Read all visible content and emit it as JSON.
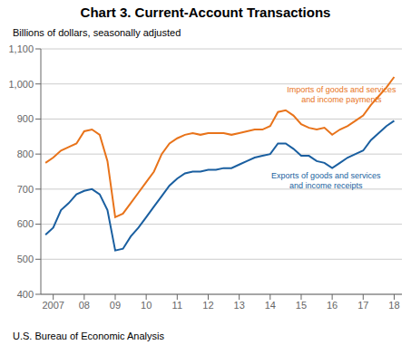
{
  "chart_data": {
    "type": "line",
    "title": "Chart 3. Current-Account Transactions",
    "y_label": "Billions of dollars, seasonally adjusted",
    "footer": "U.S. Bureau of Economic Analysis",
    "x": [
      2006.75,
      2007.0,
      2007.25,
      2007.5,
      2007.75,
      2008.0,
      2008.25,
      2008.5,
      2008.75,
      2009.0,
      2009.25,
      2009.5,
      2009.75,
      2010.0,
      2010.25,
      2010.5,
      2010.75,
      2011.0,
      2011.25,
      2011.5,
      2011.75,
      2012.0,
      2012.25,
      2012.5,
      2012.75,
      2013.0,
      2013.25,
      2013.5,
      2013.75,
      2014.0,
      2014.25,
      2014.5,
      2014.75,
      2015.0,
      2015.25,
      2015.5,
      2015.75,
      2016.0,
      2016.25,
      2016.5,
      2016.75,
      2017.0,
      2017.25,
      2017.5,
      2017.75,
      2018.0
    ],
    "series": [
      {
        "name": "Imports of goods and services\nand income payments",
        "color": "#E8731A",
        "label_xy": [
          2016.3,
          940
        ],
        "values": [
          775,
          790,
          810,
          820,
          830,
          865,
          870,
          855,
          780,
          620,
          630,
          660,
          690,
          720,
          750,
          800,
          830,
          845,
          855,
          860,
          855,
          860,
          860,
          860,
          855,
          860,
          865,
          870,
          870,
          880,
          920,
          925,
          910,
          885,
          875,
          870,
          875,
          855,
          870,
          880,
          895,
          910,
          940,
          965,
          990,
          1020
        ]
      },
      {
        "name": "Exports of goods and services\nand income receipts",
        "color": "#1a5fa0",
        "label_xy": [
          2015.8,
          760
        ],
        "values": [
          570,
          590,
          640,
          660,
          685,
          695,
          700,
          685,
          640,
          525,
          530,
          565,
          590,
          620,
          650,
          680,
          710,
          730,
          745,
          750,
          750,
          755,
          755,
          760,
          760,
          770,
          780,
          790,
          795,
          800,
          830,
          830,
          815,
          795,
          795,
          780,
          775,
          760,
          775,
          790,
          800,
          810,
          840,
          860,
          880,
          895
        ]
      }
    ],
    "xlim": [
      2006.6,
      2018.25
    ],
    "xticks": [
      2007,
      {
        "value": 2008,
        "label": "08"
      },
      {
        "value": 2009,
        "label": "09"
      },
      {
        "value": 2010,
        "label": "10"
      },
      {
        "value": 2011,
        "label": "11"
      },
      {
        "value": 2012,
        "label": "12"
      },
      {
        "value": 2013,
        "label": "13"
      },
      {
        "value": 2014,
        "label": "14"
      },
      {
        "value": 2015,
        "label": "15"
      },
      {
        "value": 2016,
        "label": "16"
      },
      {
        "value": 2017,
        "label": "17"
      },
      {
        "value": 2018,
        "label": "18"
      }
    ],
    "ylim": [
      400,
      1100
    ],
    "yticks": [
      400,
      500,
      600,
      700,
      800,
      900,
      {
        "value": 1000,
        "label": "1,000"
      },
      {
        "value": 1100,
        "label": "1,100"
      }
    ],
    "grid": "y"
  }
}
